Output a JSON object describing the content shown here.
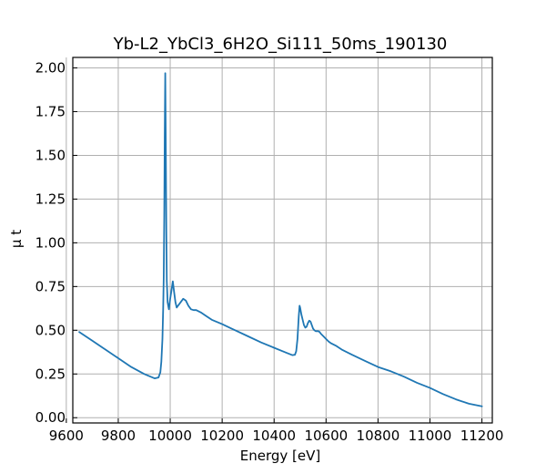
{
  "chart_data": {
    "type": "line",
    "title": "Yb-L2_YbCl3_6H2O_Si111_50ms_190130",
    "xlabel": "Energy [eV]",
    "ylabel": "μ t",
    "xlim": [
      9625,
      11240
    ],
    "ylim": [
      -0.03,
      2.06
    ],
    "xticks": [
      9600,
      9800,
      10000,
      10200,
      10400,
      10600,
      10800,
      11000,
      11200
    ],
    "yticks": [
      0.0,
      0.25,
      0.5,
      0.75,
      1.0,
      1.25,
      1.5,
      1.75,
      2.0
    ],
    "xtick_labels": [
      "9600",
      "9800",
      "10000",
      "10200",
      "10400",
      "10600",
      "10800",
      "11000",
      "11200"
    ],
    "ytick_labels": [
      "0.00",
      "0.25",
      "0.50",
      "0.75",
      "1.00",
      "1.25",
      "1.50",
      "1.75",
      "2.00"
    ],
    "grid": true,
    "series": [
      {
        "color": "#1f77b4",
        "x": [
          9650,
          9700,
          9750,
          9800,
          9850,
          9900,
          9940,
          9955,
          9962,
          9966,
          9970,
          9973,
          9975,
          9977,
          9979,
          9981,
          9983,
          9985,
          9987,
          9990,
          9995,
          10000,
          10005,
          10010,
          10015,
          10020,
          10025,
          10030,
          10040,
          10050,
          10060,
          10070,
          10080,
          10090,
          10100,
          10120,
          10140,
          10160,
          10200,
          10250,
          10300,
          10350,
          10400,
          10450,
          10470,
          10480,
          10485,
          10490,
          10495,
          10498,
          10500,
          10505,
          10510,
          10515,
          10520,
          10525,
          10530,
          10535,
          10540,
          10545,
          10550,
          10555,
          10560,
          10565,
          10570,
          10575,
          10580,
          10590,
          10600,
          10610,
          10620,
          10640,
          10660,
          10700,
          10750,
          10800,
          10850,
          10900,
          10950,
          11000,
          11050,
          11100,
          11150,
          11200
        ],
        "y": [
          0.49,
          0.44,
          0.39,
          0.34,
          0.29,
          0.25,
          0.225,
          0.23,
          0.26,
          0.32,
          0.45,
          0.62,
          0.8,
          1.15,
          1.6,
          1.97,
          1.55,
          1.05,
          0.78,
          0.66,
          0.62,
          0.68,
          0.73,
          0.78,
          0.72,
          0.66,
          0.63,
          0.64,
          0.66,
          0.68,
          0.67,
          0.64,
          0.62,
          0.615,
          0.615,
          0.6,
          0.58,
          0.56,
          0.535,
          0.5,
          0.465,
          0.43,
          0.4,
          0.37,
          0.358,
          0.36,
          0.38,
          0.45,
          0.58,
          0.64,
          0.63,
          0.59,
          0.56,
          0.53,
          0.515,
          0.52,
          0.54,
          0.555,
          0.55,
          0.53,
          0.51,
          0.5,
          0.495,
          0.495,
          0.495,
          0.49,
          0.48,
          0.465,
          0.45,
          0.435,
          0.425,
          0.41,
          0.39,
          0.36,
          0.325,
          0.29,
          0.265,
          0.235,
          0.2,
          0.17,
          0.135,
          0.105,
          0.08,
          0.065
        ]
      }
    ]
  }
}
